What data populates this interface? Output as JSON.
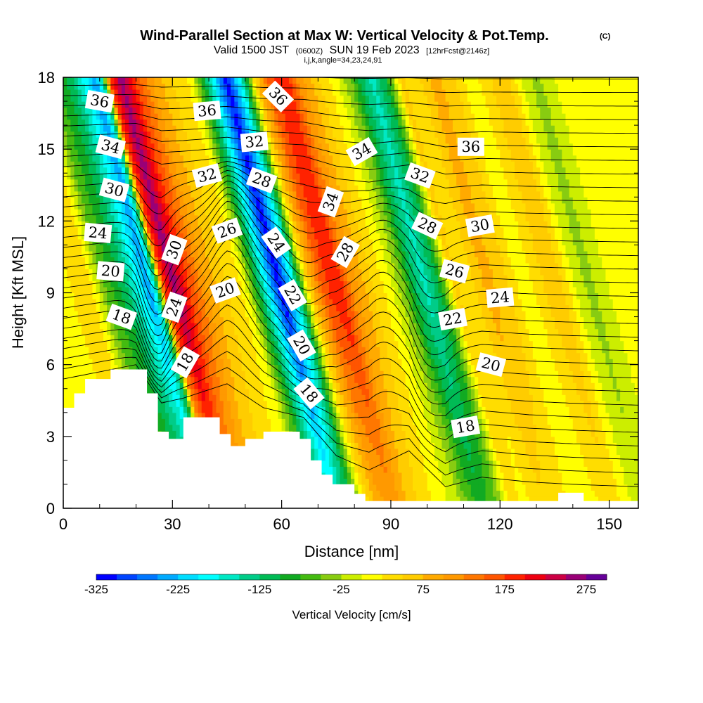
{
  "chart_data": {
    "type": "heatmap",
    "title": "Wind-Parallel Section at Max W: Vertical Velocity & Pot.Temp.",
    "title_mark": "(C)",
    "subtitle": {
      "valid_prefix": "Valid 1500 JST",
      "utc": "(0600Z)",
      "date": "SUN 19 Feb 2023",
      "forecast": "[12hrFcst@2146z]"
    },
    "index_line": "i,j,k,angle=34,23,24,91",
    "xlabel": "Distance [nm]",
    "ylabel": "Height [Kft MSL]",
    "xlim": [
      0,
      158
    ],
    "ylim": [
      0,
      18
    ],
    "x_ticks": [
      "0",
      "30",
      "60",
      "90",
      "120",
      "150"
    ],
    "y_ticks": [
      "0",
      "3",
      "6",
      "9",
      "12",
      "15",
      "18"
    ],
    "colorbar": {
      "title": "Vertical Velocity [cm/s]",
      "min": -325,
      "max": 275,
      "step": 25,
      "tick_labels": [
        "-325",
        "-225",
        "-125",
        "-25",
        "75",
        "175",
        "275"
      ],
      "colors": [
        "#0000ff",
        "#0044ff",
        "#0077ff",
        "#00aaff",
        "#00ddff",
        "#00ffff",
        "#00e8c4",
        "#00cc88",
        "#00bb55",
        "#11aa22",
        "#44bb11",
        "#88cc11",
        "#ccee00",
        "#ffff00",
        "#ffdd00",
        "#ffcc00",
        "#ffaa00",
        "#ff9900",
        "#ff7700",
        "#ff5500",
        "#ff2200",
        "#ee0011",
        "#cc0044",
        "#990077",
        "#660099"
      ]
    },
    "w_profile": [
      {
        "x": 0,
        "w": 5
      },
      {
        "x": 4,
        "w": 40
      },
      {
        "x": 8,
        "w": 30
      },
      {
        "x": 12,
        "w": -55
      },
      {
        "x": 17,
        "w": -110
      },
      {
        "x": 21,
        "w": -185
      },
      {
        "x": 24,
        "w": -245
      },
      {
        "x": 26,
        "w": -140
      },
      {
        "x": 28,
        "w": 170
      },
      {
        "x": 31,
        "w": 265
      },
      {
        "x": 35,
        "w": 175
      },
      {
        "x": 40,
        "w": 95
      },
      {
        "x": 45,
        "w": 50
      },
      {
        "x": 50,
        "w": 20
      },
      {
        "x": 54,
        "w": -105
      },
      {
        "x": 57,
        "w": -215
      },
      {
        "x": 60,
        "w": -315
      },
      {
        "x": 64,
        "w": -175
      },
      {
        "x": 68,
        "w": 55
      },
      {
        "x": 72,
        "w": 165
      },
      {
        "x": 76,
        "w": 200
      },
      {
        "x": 80,
        "w": 115
      },
      {
        "x": 85,
        "w": 55
      },
      {
        "x": 90,
        "w": 10
      },
      {
        "x": 94,
        "w": -45
      },
      {
        "x": 97,
        "w": -115
      },
      {
        "x": 100,
        "w": -160
      },
      {
        "x": 104,
        "w": -95
      },
      {
        "x": 108,
        "w": 55
      },
      {
        "x": 112,
        "w": 35
      },
      {
        "x": 117,
        "w": 85
      },
      {
        "x": 122,
        "w": 60
      },
      {
        "x": 127,
        "w": 5
      },
      {
        "x": 132,
        "w": 45
      },
      {
        "x": 136,
        "w": 75
      },
      {
        "x": 141,
        "w": 0
      },
      {
        "x": 145,
        "w": -35
      },
      {
        "x": 151,
        "w": 5
      },
      {
        "x": 158,
        "w": 15
      }
    ],
    "tilt_rate": 1.7,
    "terrain": [
      [
        0,
        4.2
      ],
      [
        3,
        4.2
      ],
      [
        3,
        4.8
      ],
      [
        6,
        4.8
      ],
      [
        6,
        5.4
      ],
      [
        13,
        5.4
      ],
      [
        13,
        5.8
      ],
      [
        23,
        5.8
      ],
      [
        23,
        4.8
      ],
      [
        26,
        4.8
      ],
      [
        26,
        3.2
      ],
      [
        29,
        3.2
      ],
      [
        29,
        2.9
      ],
      [
        33,
        2.9
      ],
      [
        33,
        3.8
      ],
      [
        43,
        3.8
      ],
      [
        43,
        3.1
      ],
      [
        46,
        3.1
      ],
      [
        46,
        2.6
      ],
      [
        50,
        2.6
      ],
      [
        50,
        2.9
      ],
      [
        55,
        2.9
      ],
      [
        55,
        3.2
      ],
      [
        65,
        3.2
      ],
      [
        65,
        2.9
      ],
      [
        68,
        2.9
      ],
      [
        68,
        2.0
      ],
      [
        71,
        2.0
      ],
      [
        71,
        1.4
      ],
      [
        74,
        1.4
      ],
      [
        74,
        1.0
      ],
      [
        80,
        1.0
      ],
      [
        80,
        0.6
      ],
      [
        83,
        0.6
      ],
      [
        83,
        0.3
      ],
      [
        136,
        0.3
      ],
      [
        136,
        0.65
      ],
      [
        143,
        0.65
      ],
      [
        143,
        0.3
      ],
      [
        158,
        0.3
      ],
      [
        158,
        0
      ],
      [
        0,
        0
      ]
    ],
    "contour_labels": [
      {
        "text": "36",
        "x": 10,
        "y": 17.0,
        "rot": 10
      },
      {
        "text": "34",
        "x": 13,
        "y": 15.1,
        "rot": 15
      },
      {
        "text": "30",
        "x": 14,
        "y": 13.3,
        "rot": 15
      },
      {
        "text": "24",
        "x": 9.5,
        "y": 11.5,
        "rot": 5
      },
      {
        "text": "20",
        "x": 13,
        "y": 9.9,
        "rot": 5
      },
      {
        "text": "18",
        "x": 16,
        "y": 8.0,
        "rot": 20
      },
      {
        "text": "36",
        "x": 39.5,
        "y": 16.6,
        "rot": -5
      },
      {
        "text": "32",
        "x": 39.5,
        "y": 13.9,
        "rot": -15
      },
      {
        "text": "30",
        "x": 30.5,
        "y": 10.8,
        "rot": -70
      },
      {
        "text": "24",
        "x": 30.5,
        "y": 8.4,
        "rot": -70
      },
      {
        "text": "18",
        "x": 33.5,
        "y": 6.1,
        "rot": -60
      },
      {
        "text": "32",
        "x": 52.5,
        "y": 15.3,
        "rot": -5
      },
      {
        "text": "28",
        "x": 54.5,
        "y": 13.7,
        "rot": 20
      },
      {
        "text": "26",
        "x": 45,
        "y": 11.6,
        "rot": -20
      },
      {
        "text": "20",
        "x": 44.5,
        "y": 9.1,
        "rot": -20
      },
      {
        "text": "36",
        "x": 59,
        "y": 17.2,
        "rot": 45
      },
      {
        "text": "24",
        "x": 58.5,
        "y": 11.1,
        "rot": 55
      },
      {
        "text": "22",
        "x": 63,
        "y": 8.9,
        "rot": 60
      },
      {
        "text": "20",
        "x": 65.5,
        "y": 6.8,
        "rot": 60
      },
      {
        "text": "18",
        "x": 67.5,
        "y": 4.8,
        "rot": 50
      },
      {
        "text": "34",
        "x": 82,
        "y": 14.9,
        "rot": -30
      },
      {
        "text": "34",
        "x": 73.5,
        "y": 12.8,
        "rot": -70
      },
      {
        "text": "28",
        "x": 77.5,
        "y": 10.7,
        "rot": -60
      },
      {
        "text": "32",
        "x": 98,
        "y": 13.9,
        "rot": 20
      },
      {
        "text": "28",
        "x": 100,
        "y": 11.8,
        "rot": 25
      },
      {
        "text": "26",
        "x": 107.5,
        "y": 9.9,
        "rot": 15
      },
      {
        "text": "22",
        "x": 107,
        "y": 7.9,
        "rot": -10
      },
      {
        "text": "36",
        "x": 112,
        "y": 15.1,
        "rot": 0
      },
      {
        "text": "30",
        "x": 114.5,
        "y": 11.8,
        "rot": -10
      },
      {
        "text": "24",
        "x": 120,
        "y": 8.8,
        "rot": -5
      },
      {
        "text": "20",
        "x": 117.5,
        "y": 6.0,
        "rot": 15
      },
      {
        "text": "18",
        "x": 110.5,
        "y": 3.4,
        "rot": -10
      }
    ]
  }
}
